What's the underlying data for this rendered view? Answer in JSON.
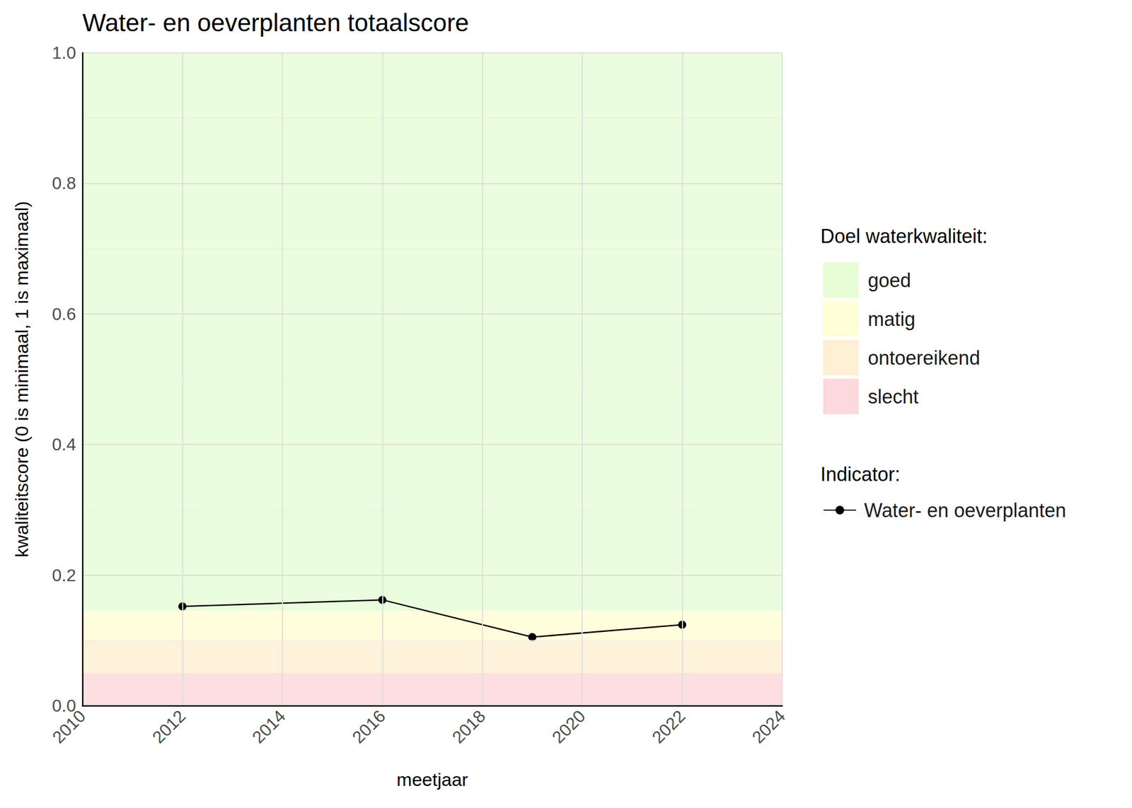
{
  "chart_data": {
    "type": "line",
    "title": "Water- en oeverplanten totaalscore",
    "x_label": "meetjaar",
    "y_label": "kwaliteitscore (0 is minimaal, 1 is maximaal)",
    "x": [
      2012,
      2016,
      2019,
      2022
    ],
    "series": [
      {
        "name": "Water- en oeverplanten",
        "color": "#000000",
        "marker": "circle",
        "line_style": "solid",
        "values": [
          0.152,
          0.162,
          0.105,
          0.124
        ]
      }
    ],
    "xlim": [
      2010,
      2024
    ],
    "xticks": [
      2010,
      2012,
      2014,
      2016,
      2018,
      2020,
      2022,
      2024
    ],
    "ylim": [
      0,
      1
    ],
    "yticks": [
      {
        "value": 0,
        "label": "0.0"
      },
      0.2,
      0.4,
      0.6,
      0.8,
      {
        "value": 1,
        "label": "1.0"
      }
    ],
    "grid": true,
    "band_title": "Doel waterkwaliteit:",
    "series_title": "Indicator:",
    "bands": [
      {
        "name": "goed",
        "color": "#e6fdd6",
        "from": 0.145,
        "to": 1
      },
      {
        "name": "matig",
        "color": "#fefed6",
        "from": 0.1,
        "to": 0.145
      },
      {
        "name": "ontoereikend",
        "color": "#fdf0d4",
        "from": 0.05,
        "to": 0.1
      },
      {
        "name": "slecht",
        "color": "#fdd8dc",
        "from": 0,
        "to": 0.05
      }
    ]
  }
}
